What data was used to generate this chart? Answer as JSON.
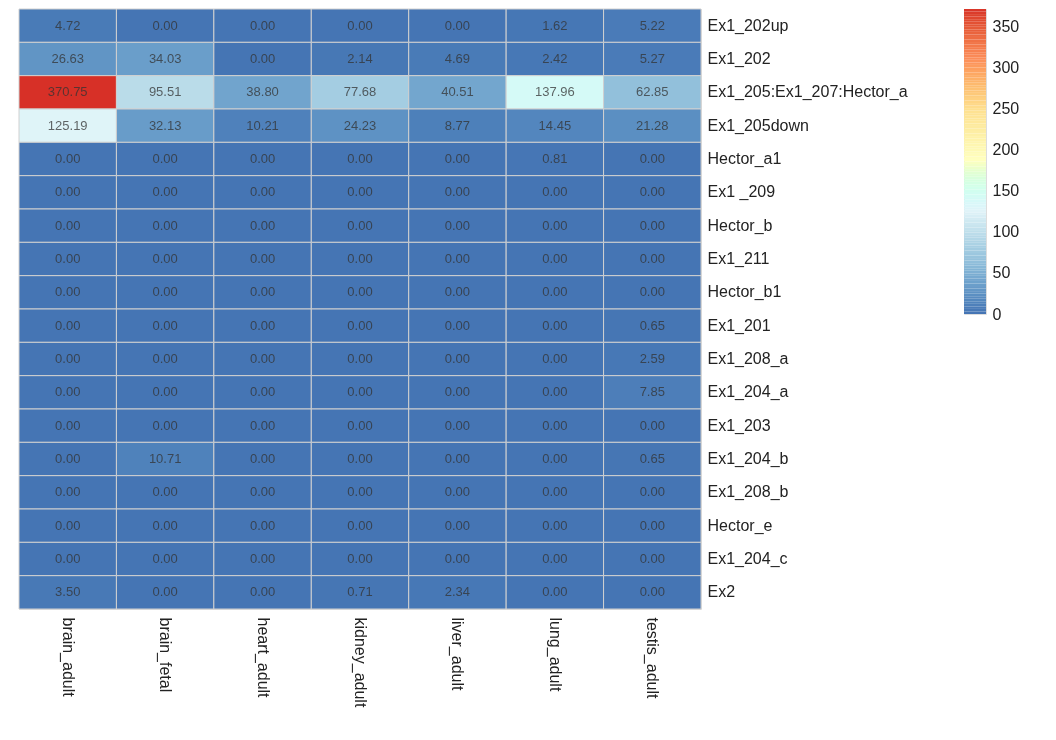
{
  "chart_data": {
    "type": "heatmap",
    "categories": [
      "brain_adult",
      "brain_fetal",
      "heart_adult",
      "kidney_adult",
      "liver_adult",
      "lung_adult",
      "testis_adult"
    ],
    "y_categories": [
      "Ex1_202up",
      "Ex1_202",
      "Ex1_205:Ex1_207:Hector_a",
      "Ex1_205down",
      "Hector_a1",
      "Ex1 _209",
      "Hector_b",
      "Ex1_211",
      "Hector_b1",
      "Ex1_201",
      "Ex1_208_a",
      "Ex1_204_a",
      "Ex1_203",
      "Ex1_204_b",
      "Ex1_208_b",
      "Hector_e",
      "Ex1_204_c",
      "Ex2"
    ],
    "cells": [
      [
        4.72,
        0,
        0,
        0,
        0,
        1.62,
        5.22
      ],
      [
        26.63,
        34.03,
        0,
        2.14,
        4.69,
        2.42,
        5.27
      ],
      [
        370.75,
        95.51,
        38.8,
        77.68,
        40.51,
        137.96,
        62.85
      ],
      [
        125.19,
        32.13,
        10.21,
        24.23,
        8.77,
        14.45,
        21.28
      ],
      [
        0,
        0,
        0,
        0,
        0,
        0.81,
        0
      ],
      [
        0,
        0,
        0,
        0,
        0,
        0,
        0
      ],
      [
        0,
        0,
        0,
        0,
        0,
        0,
        0
      ],
      [
        0,
        0,
        0,
        0,
        0,
        0,
        0
      ],
      [
        0,
        0,
        0,
        0,
        0,
        0,
        0
      ],
      [
        0,
        0,
        0,
        0,
        0,
        0,
        0.65
      ],
      [
        0,
        0,
        0,
        0,
        0,
        0,
        2.59
      ],
      [
        0,
        0,
        0,
        0,
        0,
        0,
        7.85
      ],
      [
        0,
        0,
        0,
        0,
        0,
        0,
        0
      ],
      [
        0,
        10.71,
        0,
        0,
        0,
        0,
        0.65
      ],
      [
        0,
        0,
        0,
        0,
        0,
        0,
        0
      ],
      [
        0,
        0,
        0,
        0,
        0,
        0,
        0
      ],
      [
        0,
        0,
        0,
        0,
        0,
        0,
        0
      ],
      [
        3.5,
        0,
        0,
        0.71,
        2.34,
        0,
        0
      ]
    ],
    "cell_labels": [
      [
        "4.72",
        "0.00",
        "0.00",
        "0.00",
        "0.00",
        "1.62",
        "5.22"
      ],
      [
        "26.63",
        "34.03",
        "0.00",
        "2.14",
        "4.69",
        "2.42",
        "5.27"
      ],
      [
        "370.75",
        "95.51",
        "38.80",
        "77.68",
        "40.51",
        "137.96",
        "62.85"
      ],
      [
        "125.19",
        "32.13",
        "10.21",
        "24.23",
        "8.77",
        "14.45",
        "21.28"
      ],
      [
        "0.00",
        "0.00",
        "0.00",
        "0.00",
        "0.00",
        "0.81",
        "0.00"
      ],
      [
        "0.00",
        "0.00",
        "0.00",
        "0.00",
        "0.00",
        "0.00",
        "0.00"
      ],
      [
        "0.00",
        "0.00",
        "0.00",
        "0.00",
        "0.00",
        "0.00",
        "0.00"
      ],
      [
        "0.00",
        "0.00",
        "0.00",
        "0.00",
        "0.00",
        "0.00",
        "0.00"
      ],
      [
        "0.00",
        "0.00",
        "0.00",
        "0.00",
        "0.00",
        "0.00",
        "0.00"
      ],
      [
        "0.00",
        "0.00",
        "0.00",
        "0.00",
        "0.00",
        "0.00",
        "0.65"
      ],
      [
        "0.00",
        "0.00",
        "0.00",
        "0.00",
        "0.00",
        "0.00",
        "2.59"
      ],
      [
        "0.00",
        "0.00",
        "0.00",
        "0.00",
        "0.00",
        "0.00",
        "7.85"
      ],
      [
        "0.00",
        "0.00",
        "0.00",
        "0.00",
        "0.00",
        "0.00",
        "0.00"
      ],
      [
        "0.00",
        "10.71",
        "0.00",
        "0.00",
        "0.00",
        "0.00",
        "0.65"
      ],
      [
        "0.00",
        "0.00",
        "0.00",
        "0.00",
        "0.00",
        "0.00",
        "0.00"
      ],
      [
        "0.00",
        "0.00",
        "0.00",
        "0.00",
        "0.00",
        "0.00",
        "0.00"
      ],
      [
        "0.00",
        "0.00",
        "0.00",
        "0.00",
        "0.00",
        "0.00",
        "0.00"
      ],
      [
        "3.50",
        "0.00",
        "0.00",
        "0.71",
        "2.34",
        "0.00",
        "0.00"
      ]
    ],
    "clim": [
      0,
      370.75
    ],
    "cticks": [
      0,
      50,
      100,
      150,
      200,
      250,
      300,
      350
    ]
  }
}
